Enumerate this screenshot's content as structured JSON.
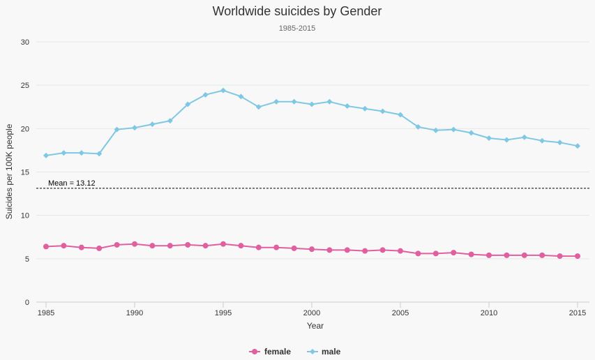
{
  "chart_data": {
    "type": "line",
    "title": "Worldwide suicides by Gender",
    "subtitle": "1985-2015",
    "xlabel": "Year",
    "ylabel": "Suicides per 100K people",
    "xlim": [
      1985,
      2015
    ],
    "ylim": [
      0,
      30
    ],
    "x_ticks": [
      1985,
      1990,
      1995,
      2000,
      2005,
      2010,
      2015
    ],
    "y_ticks": [
      0,
      5,
      10,
      15,
      20,
      25,
      30
    ],
    "grid": "horizontal",
    "legend": "bottom-center",
    "x": [
      1985,
      1986,
      1987,
      1988,
      1989,
      1990,
      1991,
      1992,
      1993,
      1994,
      1995,
      1996,
      1997,
      1998,
      1999,
      2000,
      2001,
      2002,
      2003,
      2004,
      2005,
      2006,
      2007,
      2008,
      2009,
      2010,
      2011,
      2012,
      2013,
      2014,
      2015
    ],
    "series": [
      {
        "name": "female",
        "color": "#e0609f",
        "marker": "circle",
        "values": [
          6.4,
          6.5,
          6.3,
          6.2,
          6.6,
          6.7,
          6.5,
          6.5,
          6.6,
          6.5,
          6.7,
          6.5,
          6.3,
          6.3,
          6.2,
          6.1,
          6.0,
          6.0,
          5.9,
          6.0,
          5.9,
          5.6,
          5.6,
          5.7,
          5.5,
          5.4,
          5.4,
          5.4,
          5.4,
          5.3,
          5.3
        ]
      },
      {
        "name": "male",
        "color": "#7ec8e3",
        "marker": "diamond",
        "values": [
          16.9,
          17.2,
          17.2,
          17.1,
          19.9,
          20.1,
          20.5,
          20.9,
          22.8,
          23.9,
          24.4,
          23.7,
          22.5,
          23.1,
          23.1,
          22.8,
          23.1,
          22.6,
          22.3,
          22.0,
          21.6,
          20.2,
          19.8,
          19.9,
          19.5,
          18.9,
          18.7,
          19.0,
          18.6,
          18.4,
          18.0
        ]
      }
    ],
    "annotations": [
      {
        "label": "Mean = 13.12",
        "value": 13.12,
        "style": "dashed",
        "color": "#000000"
      }
    ]
  }
}
